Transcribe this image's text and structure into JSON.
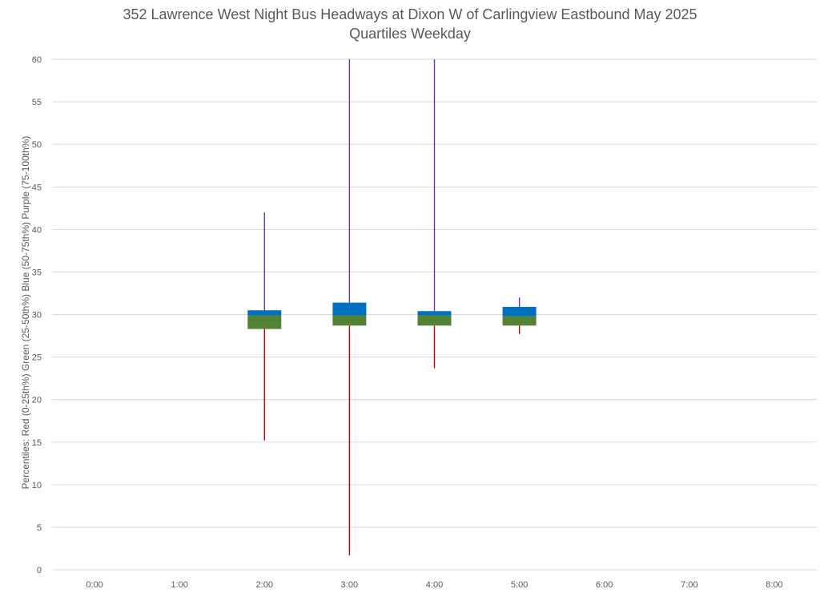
{
  "chart_data": {
    "type": "box",
    "title_line1": "352 Lawrence West Night Bus Headways at Dixon W of Carlingview Eastbound May 2025",
    "title_line2": "Quartiles Weekday",
    "ylabel": "Percentiles:  Red (0-25th%)  Green (25-50th%)  Blue (50-75th%)  Purple (75-100th%)",
    "xlabel": "",
    "ylim": [
      0,
      60
    ],
    "yticks": [
      0,
      5,
      10,
      15,
      20,
      25,
      30,
      35,
      40,
      45,
      50,
      55,
      60
    ],
    "categories": [
      "0:00",
      "1:00",
      "2:00",
      "3:00",
      "4:00",
      "5:00",
      "6:00",
      "7:00",
      "8:00"
    ],
    "grid": true,
    "colors": {
      "q1": "#c00000",
      "q2": "#548235",
      "q3": "#0070c0",
      "q4": "#7030a0",
      "grid": "#d9d9d9"
    },
    "series": [
      {
        "category": "2:00",
        "min": 15.2,
        "q1": 28.3,
        "median": 29.9,
        "q3": 30.5,
        "max": 42.0
      },
      {
        "category": "3:00",
        "min": 1.7,
        "q1": 28.7,
        "median": 29.9,
        "q3": 31.4,
        "max": 60.0
      },
      {
        "category": "4:00",
        "min": 23.7,
        "q1": 28.7,
        "median": 29.9,
        "q3": 30.4,
        "max": 60.0
      },
      {
        "category": "5:00",
        "min": 27.7,
        "q1": 28.7,
        "median": 29.8,
        "q3": 30.9,
        "max": 32.0
      }
    ]
  }
}
